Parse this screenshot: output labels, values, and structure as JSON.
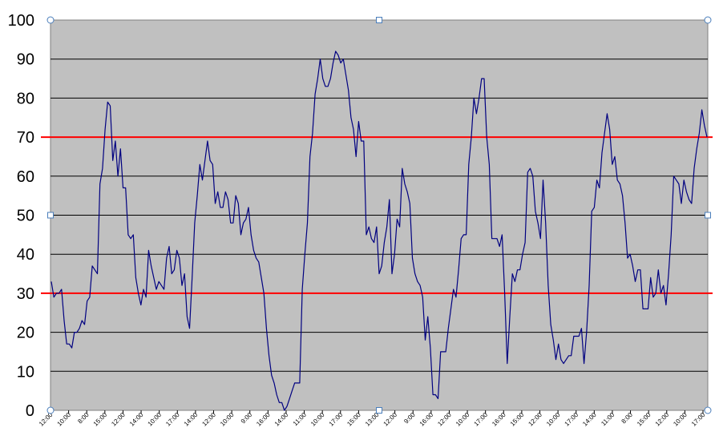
{
  "chart_data": {
    "type": "line",
    "title": "",
    "xlabel": "",
    "ylabel": "",
    "ylim": [
      0,
      100
    ],
    "yticks": [
      0,
      10,
      20,
      30,
      40,
      50,
      60,
      70,
      80,
      90,
      100
    ],
    "grid": true,
    "legend": "none",
    "colors": {
      "plot_background": "#c0c0c0",
      "gridline": "#000000",
      "series": "#000080",
      "threshold": "#ff0000"
    },
    "x_tick_labels": [
      "12:00",
      "10:00",
      "8:00",
      "15:00",
      "12:00",
      "14:00",
      "10:00",
      "17:00",
      "14:00",
      "12:00",
      "10:00",
      "9:00",
      "16:00",
      "14:00",
      "11:00",
      "10:00",
      "17:00",
      "15:00",
      "13:00",
      "12:00",
      "9:00",
      "16:00",
      "12:00",
      "10:00",
      "17:00",
      "16:00",
      "15:00",
      "12:00",
      "10:00",
      "17:00",
      "14:00",
      "11:00",
      "8:00",
      "15:00",
      "12:00",
      "10:00",
      "17:00"
    ],
    "thresholds": [
      {
        "value": 70,
        "color": "#ff0000"
      },
      {
        "value": 30,
        "color": "#ff0000"
      }
    ],
    "series": [
      {
        "values": [
          33,
          29,
          30,
          30,
          31,
          23,
          17,
          17,
          16,
          20,
          20,
          21,
          23,
          22,
          28,
          29,
          37,
          36,
          35,
          58,
          62,
          72,
          79,
          78,
          64,
          69,
          60,
          67,
          57,
          57,
          45,
          44,
          45,
          34,
          30,
          27,
          31,
          29,
          41,
          37,
          34,
          31,
          33,
          32,
          31,
          39,
          42,
          35,
          36,
          41,
          39,
          32,
          35,
          24,
          21,
          34,
          48,
          55,
          63,
          59,
          64,
          69,
          64,
          63,
          53,
          56,
          52,
          52,
          56,
          54,
          48,
          48,
          55,
          53,
          45,
          48,
          49,
          52,
          45,
          41,
          39,
          38,
          34,
          30,
          21,
          14,
          9,
          7,
          4,
          2,
          2,
          0,
          1,
          3,
          5,
          7,
          7,
          7,
          31,
          40,
          48,
          65,
          71,
          81,
          85,
          90,
          85,
          83,
          83,
          85,
          89,
          92,
          91,
          89,
          90,
          86,
          82,
          75,
          72,
          65,
          74,
          69,
          69,
          45,
          47,
          44,
          43,
          47,
          35,
          37,
          43,
          47,
          54,
          35,
          40,
          49,
          47,
          62,
          58,
          56,
          53,
          39,
          35,
          33,
          32,
          29,
          18,
          24,
          16,
          4,
          4,
          3,
          15,
          15,
          15,
          21,
          26,
          31,
          29,
          36,
          44,
          45,
          45,
          63,
          70,
          80,
          76,
          80,
          85,
          85,
          70,
          63,
          44,
          44,
          44,
          42,
          45,
          30,
          12,
          24,
          35,
          33,
          36,
          36,
          40,
          43,
          61,
          62,
          60,
          51,
          48,
          44,
          59,
          48,
          32,
          22,
          18,
          13,
          17,
          13,
          12,
          13,
          14,
          14,
          19,
          19,
          19,
          21,
          12,
          20,
          32,
          51,
          52,
          59,
          57,
          66,
          71,
          76,
          72,
          63,
          65,
          59,
          58,
          55,
          48,
          39,
          40,
          37,
          33,
          36,
          36,
          26,
          26,
          26,
          34,
          29,
          30,
          36,
          30,
          32,
          27,
          35,
          45,
          60,
          59,
          58,
          53,
          59,
          56,
          54,
          53,
          62,
          67,
          71,
          77,
          73,
          70
        ]
      }
    ]
  }
}
